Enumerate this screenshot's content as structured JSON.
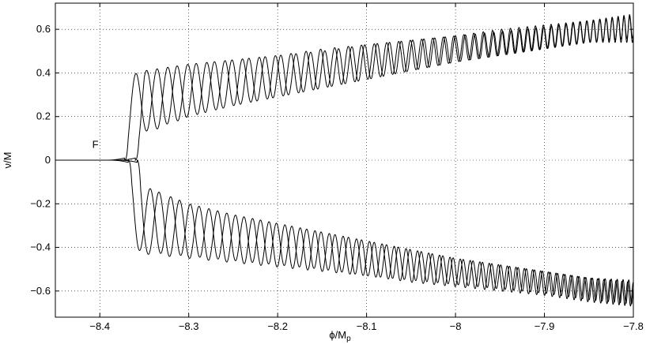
{
  "chart_data": {
    "type": "line",
    "title": "",
    "xlabel": "ϕ/M",
    "xlabel_sub": "p",
    "ylabel": "ν/M",
    "xlim": [
      -8.45,
      -7.8
    ],
    "ylim": [
      -0.72,
      0.72
    ],
    "xticks": [
      -8.4,
      -8.3,
      -8.2,
      -8.1,
      -8,
      -7.9,
      -7.8
    ],
    "xtick_labels": [
      "−8.4",
      "−8.3",
      "−8.2",
      "−8.1",
      "−8",
      "−7.9",
      "−7.8"
    ],
    "yticks": [
      0.6,
      0.4,
      0.2,
      0,
      -0.2,
      -0.4,
      -0.6
    ],
    "ytick_labels": [
      "0.6",
      "0.4",
      "0.2",
      "0",
      "−0.2",
      "−0.4",
      "−0.6"
    ],
    "grid": true,
    "grid_style": "dotted",
    "line_color": "#000000",
    "annotations": [
      {
        "text": "F",
        "x": -8.405,
        "y": 0.07
      }
    ],
    "series": [
      {
        "branch": "upper",
        "onset": -8.372,
        "envelope_x": [
          -8.372,
          -8.35,
          -8.3,
          -8.25,
          -8.2,
          -8.15,
          -8.1,
          -8.05,
          -8.0,
          -7.95,
          -7.9,
          -7.85,
          -7.8
        ],
        "envelope_max": [
          0.38,
          0.41,
          0.44,
          0.46,
          0.48,
          0.5,
          0.53,
          0.55,
          0.57,
          0.59,
          0.61,
          0.64,
          0.66
        ],
        "envelope_min": [
          0.0,
          0.13,
          0.2,
          0.25,
          0.29,
          0.33,
          0.37,
          0.41,
          0.45,
          0.48,
          0.51,
          0.54,
          0.56
        ]
      },
      {
        "branch": "upper",
        "onset": -8.36,
        "envelope_x": [
          -8.36,
          -8.35,
          -8.3,
          -8.25,
          -8.2,
          -8.15,
          -8.1,
          -8.05,
          -8.0,
          -7.95,
          -7.9,
          -7.85,
          -7.8
        ],
        "envelope_max": [
          0.18,
          0.41,
          0.44,
          0.46,
          0.48,
          0.51,
          0.53,
          0.55,
          0.57,
          0.6,
          0.62,
          0.64,
          0.67
        ],
        "envelope_min": [
          0.0,
          0.12,
          0.2,
          0.25,
          0.29,
          0.33,
          0.37,
          0.41,
          0.45,
          0.48,
          0.51,
          0.54,
          0.54
        ]
      },
      {
        "branch": "lower",
        "onset": -8.368,
        "envelope_x": [
          -8.368,
          -8.35,
          -8.3,
          -8.25,
          -8.2,
          -8.15,
          -8.1,
          -8.05,
          -8.0,
          -7.95,
          -7.9,
          -7.85,
          -7.8
        ],
        "envelope_max": [
          0.0,
          -0.12,
          -0.2,
          -0.25,
          -0.29,
          -0.33,
          -0.37,
          -0.41,
          -0.45,
          -0.48,
          -0.51,
          -0.54,
          -0.55
        ],
        "envelope_min": [
          -0.4,
          -0.42,
          -0.44,
          -0.46,
          -0.48,
          -0.5,
          -0.53,
          -0.55,
          -0.57,
          -0.59,
          -0.61,
          -0.64,
          -0.66
        ]
      },
      {
        "branch": "lower",
        "onset": -8.358,
        "envelope_x": [
          -8.358,
          -8.35,
          -8.3,
          -8.25,
          -8.2,
          -8.15,
          -8.1,
          -8.05,
          -8.0,
          -7.95,
          -7.9,
          -7.85,
          -7.8
        ],
        "envelope_max": [
          0.0,
          -0.12,
          -0.2,
          -0.25,
          -0.29,
          -0.33,
          -0.37,
          -0.41,
          -0.45,
          -0.48,
          -0.51,
          -0.54,
          -0.56
        ],
        "envelope_min": [
          -0.38,
          -0.43,
          -0.45,
          -0.47,
          -0.49,
          -0.51,
          -0.53,
          -0.56,
          -0.58,
          -0.6,
          -0.62,
          -0.65,
          -0.67
        ]
      }
    ]
  }
}
